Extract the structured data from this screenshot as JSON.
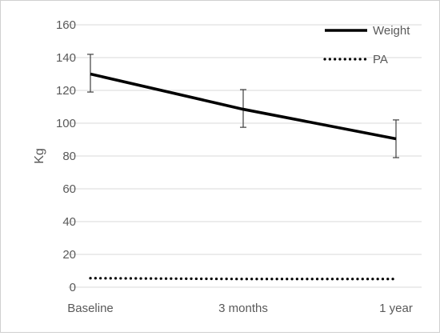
{
  "chart_data": {
    "type": "line",
    "categories": [
      "Baseline",
      "3 months",
      "1 year"
    ],
    "ylabel": "Kg",
    "xlabel": "",
    "ylim": [
      0,
      160
    ],
    "yticks": [
      0,
      20,
      40,
      60,
      80,
      100,
      120,
      140,
      160
    ],
    "grid": true,
    "legend_position": "top-right",
    "series": [
      {
        "name": "Weight",
        "values": [
          130,
          108.5,
          90.5
        ],
        "error_low": [
          119,
          97.5,
          79
        ],
        "error_high": [
          142,
          120.5,
          102
        ],
        "line_style": "solid",
        "color": "#000000"
      },
      {
        "name": "PA",
        "values": [
          5.5,
          5,
          5
        ],
        "line_style": "dotted",
        "color": "#000000"
      }
    ]
  }
}
